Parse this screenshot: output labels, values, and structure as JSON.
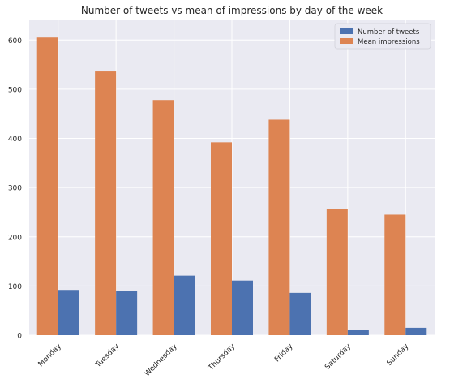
{
  "chart_data": {
    "type": "bar",
    "title": "Number of tweets vs mean of impressions by day of the week",
    "xlabel": "",
    "ylabel": "",
    "categories": [
      "Monday",
      "Tuesday",
      "Wednesday",
      "Thursday",
      "Friday",
      "Saturday",
      "Sunday"
    ],
    "series": [
      {
        "name": "Number of tweets",
        "values": [
          92,
          90,
          121,
          111,
          86,
          10,
          15
        ],
        "color": "#4c72b0"
      },
      {
        "name": "Mean impressions",
        "values": [
          605,
          536,
          478,
          392,
          438,
          257,
          245
        ],
        "color": "#dd8452"
      }
    ],
    "bar_order": [
      "Mean impressions",
      "Number of tweets"
    ],
    "ylim": [
      0,
      640
    ],
    "yticks": [
      0,
      100,
      200,
      300,
      400,
      500,
      600
    ],
    "grid": true,
    "legend_position": "top-right",
    "background_color": "#eaeaf2",
    "grid_color": "#ffffff"
  }
}
